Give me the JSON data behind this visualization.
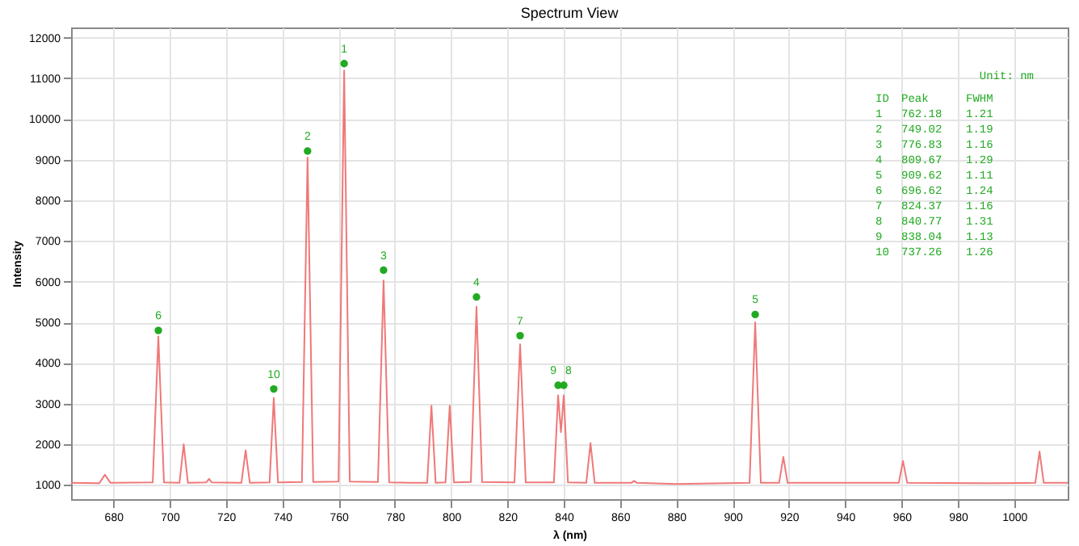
{
  "chart_data": {
    "type": "line",
    "title": "Spectrum View",
    "xlabel": "λ (nm)",
    "ylabel": "Intensity",
    "xlim": [
      665,
      1019
    ],
    "ylim": [
      650,
      12250
    ],
    "xticks": [
      680,
      700,
      720,
      740,
      760,
      780,
      800,
      820,
      840,
      860,
      880,
      900,
      920,
      940,
      960,
      980,
      1000
    ],
    "yticks": [
      1000,
      2000,
      3000,
      4000,
      5000,
      6000,
      7000,
      8000,
      9000,
      10000,
      11000,
      12000
    ],
    "grid": true,
    "series": [
      {
        "color": "#f07878",
        "x": [
          665,
          675,
          677,
          679,
          694,
          696,
          698,
          703.5,
          705,
          706.5,
          713,
          714,
          715,
          725.5,
          727,
          728.5,
          735.5,
          737,
          738.5,
          747,
          749,
          751,
          760,
          762,
          764,
          774,
          776,
          778,
          791.5,
          793,
          794.5,
          798,
          799.5,
          801,
          807,
          809,
          811,
          822.5,
          824.5,
          826.5,
          836.5,
          838,
          839,
          840,
          841.5,
          848,
          849.5,
          851,
          864,
          865,
          866,
          880,
          906,
          908,
          910,
          916.5,
          918,
          919.5,
          959,
          960.5,
          962,
          990,
          1007.5,
          1009,
          1010.5,
          1019
        ],
        "values": [
          1050,
          1040,
          1250,
          1050,
          1060,
          4650,
          1060,
          1050,
          2000,
          1050,
          1060,
          1150,
          1060,
          1050,
          1850,
          1050,
          1060,
          3140,
          1060,
          1070,
          9050,
          1070,
          1080,
          11190,
          1080,
          1070,
          6030,
          1060,
          1050,
          2950,
          1050,
          1060,
          2950,
          1060,
          1070,
          5380,
          1070,
          1060,
          4460,
          1060,
          1060,
          3200,
          2300,
          3200,
          1060,
          1050,
          2030,
          1050,
          1050,
          1100,
          1050,
          1020,
          1050,
          5000,
          1050,
          1050,
          1690,
          1050,
          1050,
          1590,
          1050,
          1040,
          1050,
          1820,
          1050,
          1050
        ]
      },
      {
        "type": "scatter",
        "color": "#22aa22",
        "marker": "circle",
        "x": [
          762,
          749,
          776,
          809,
          908,
          696,
          824.5,
          838,
          840,
          737
        ],
        "values": [
          11360,
          9210,
          6280,
          5620,
          5190,
          4800,
          4670,
          3450,
          3450,
          3360
        ]
      }
    ],
    "annotations": [
      {
        "text": "1",
        "x": 762,
        "y": 11360
      },
      {
        "text": "2",
        "x": 749,
        "y": 9210
      },
      {
        "text": "3",
        "x": 776,
        "y": 6280
      },
      {
        "text": "4",
        "x": 809,
        "y": 5620
      },
      {
        "text": "5",
        "x": 908,
        "y": 5190
      },
      {
        "text": "6",
        "x": 696,
        "y": 4800
      },
      {
        "text": "7",
        "x": 824.5,
        "y": 4670
      },
      {
        "text": "9",
        "x": 838,
        "y": 3450
      },
      {
        "text": "8",
        "x": 840,
        "y": 3450
      },
      {
        "text": "10",
        "x": 737,
        "y": 3360
      },
      "Unit: nm",
      "ID  Peak     FWHM",
      "1   762.18   1.21",
      "2   749.02   1.19",
      "3   776.83   1.16",
      "4   809.67   1.29",
      "5   909.62   1.11",
      "6   696.62   1.24",
      "7   824.37   1.16",
      "8   840.77   1.31",
      "9   838.04   1.13",
      "10  737.26   1.26"
    ]
  }
}
